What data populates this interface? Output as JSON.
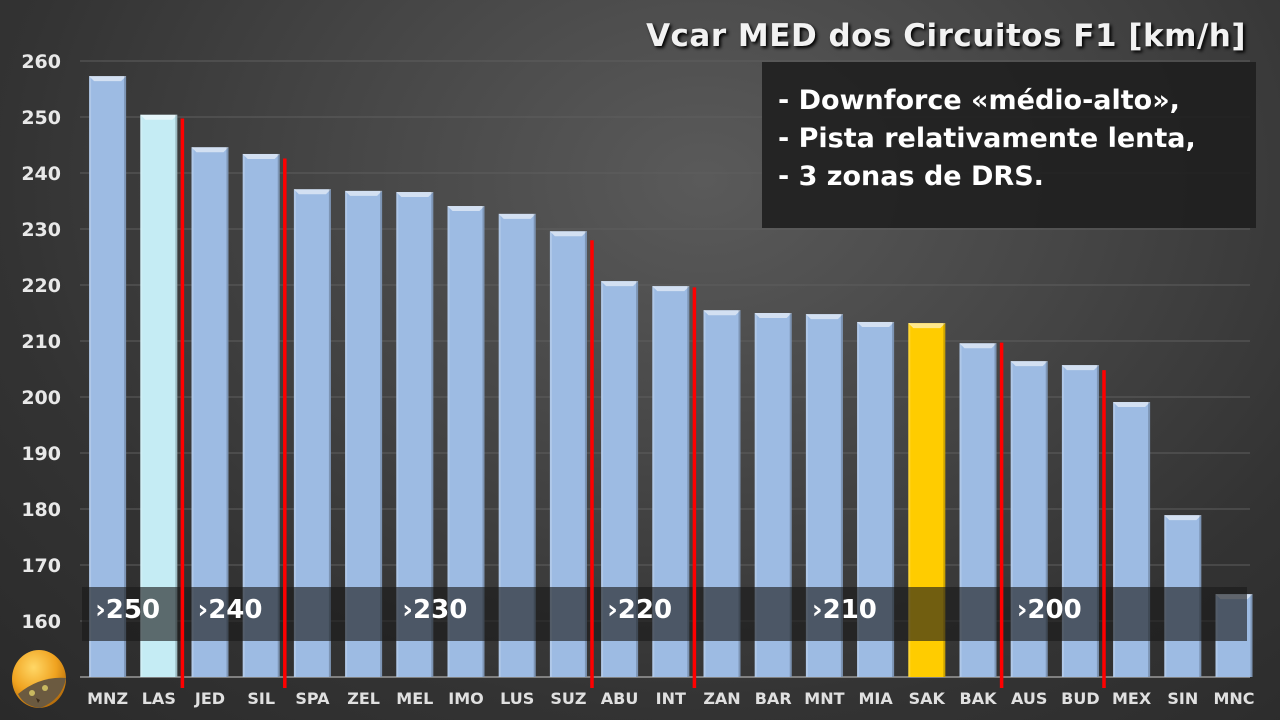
{
  "chart_data": {
    "type": "bar",
    "title": "Vcar MED dos Circuitos F1 [km/h]",
    "xlabel": "",
    "ylabel": "",
    "ylim": [
      150,
      260
    ],
    "yticks": [
      160,
      170,
      180,
      190,
      200,
      210,
      220,
      230,
      240,
      250,
      260
    ],
    "grid": true,
    "categories": [
      "MNZ",
      "LAS",
      "JED",
      "SIL",
      "SPA",
      "ZEL",
      "MEL",
      "IMO",
      "LUS",
      "SUZ",
      "ABU",
      "INT",
      "ZAN",
      "BAR",
      "MNT",
      "MIA",
      "SAK",
      "BAK",
      "AUS",
      "BUD",
      "MEX",
      "SIN",
      "MNC"
    ],
    "values": [
      257.3,
      250.4,
      244.6,
      243.4,
      237.1,
      236.8,
      236.6,
      234.1,
      232.7,
      229.6,
      220.7,
      219.8,
      215.5,
      215.0,
      214.8,
      213.4,
      213.2,
      209.6,
      206.4,
      205.7,
      199.1,
      178.9,
      164.8
    ],
    "highlight": {
      "SAK": "#ffcc00",
      "LAS": "#c5ecf4"
    },
    "default_color": "#9dbbe3",
    "group_separators_after": [
      "LAS",
      "SIL",
      "SUZ",
      "INT",
      "BAK",
      "BUD"
    ],
    "separator_color": "#ff0000",
    "band_labels": [
      {
        "label": "›250",
        "start": "MNZ"
      },
      {
        "label": "›240",
        "start": "JED"
      },
      {
        "label": "›230",
        "start": "MEL"
      },
      {
        "label": "›220",
        "start": "ABU"
      },
      {
        "label": "›210",
        "start": "MNT"
      },
      {
        "label": "›200",
        "start": "AUS"
      }
    ]
  },
  "notes": [
    "- Downforce «médio-alto»,",
    "- Pista relativamente lenta,",
    "- 3 zonas de DRS."
  ],
  "logo": {
    "icon": "cat-helmet-icon"
  }
}
